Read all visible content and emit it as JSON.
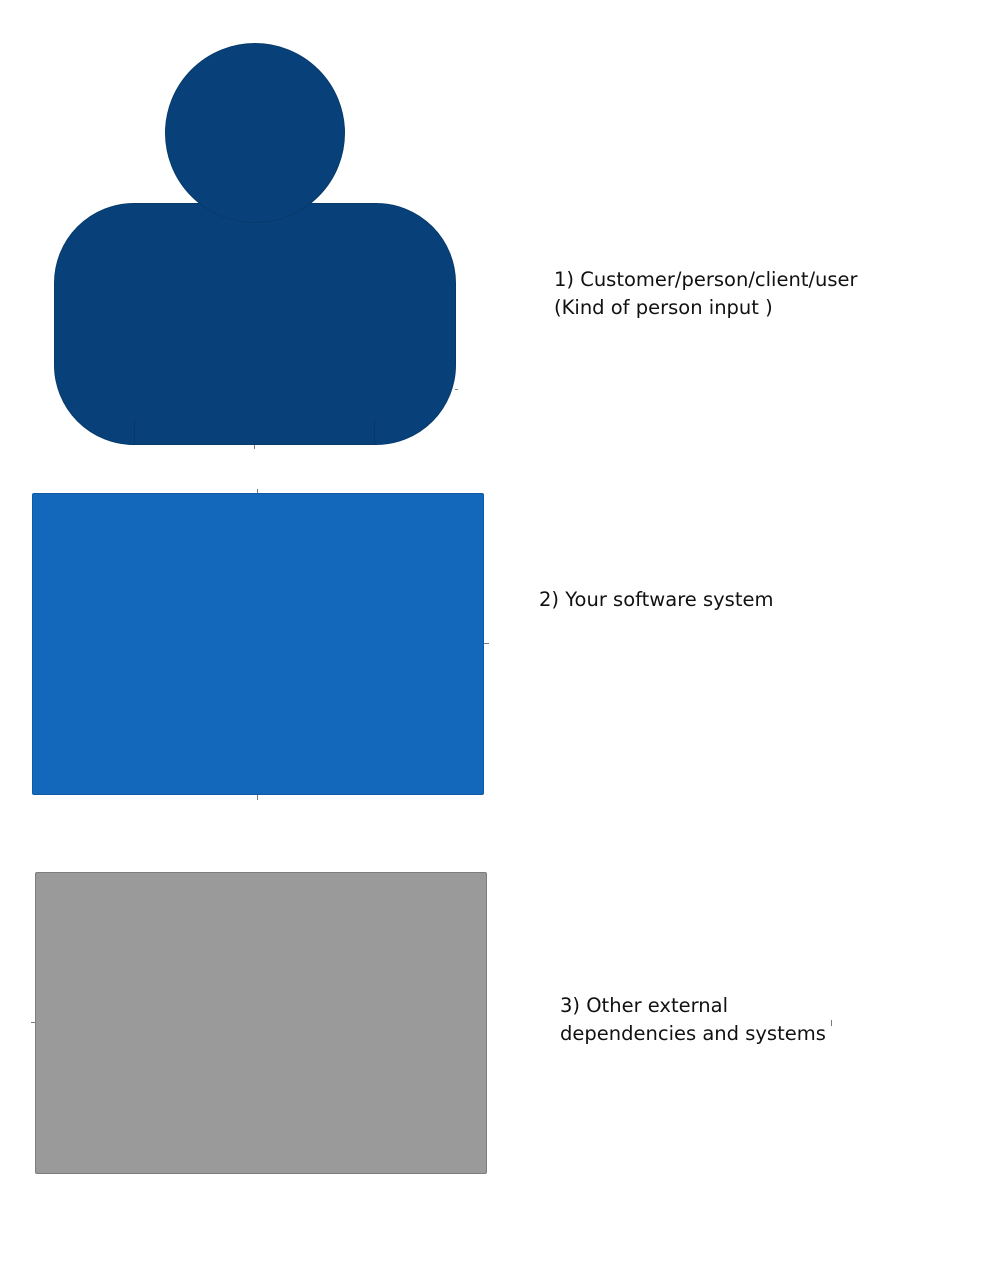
{
  "colors": {
    "person": "#08417a",
    "system": "#1468bb",
    "external": "#9a9a9a"
  },
  "elements": {
    "person": {
      "icon": "person-icon",
      "label_line1": "1) Customer/person/client/user",
      "label_line2": "(Kind of person input )"
    },
    "software_system": {
      "label": "2) Your software system"
    },
    "external_system": {
      "label_line1": "3) Other external",
      "label_line2": "dependencies and systems"
    }
  }
}
